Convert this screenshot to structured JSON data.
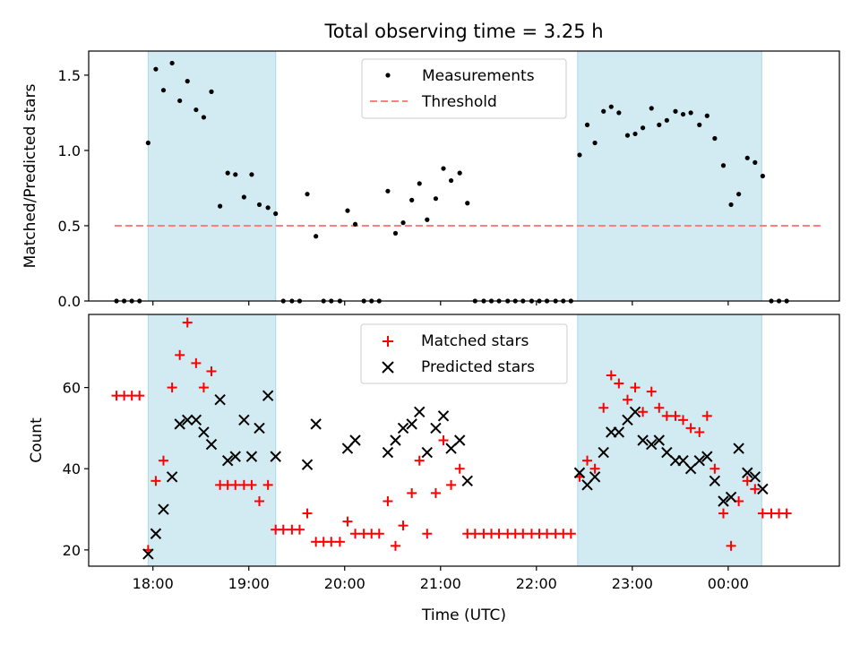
{
  "chart_data": {
    "title": "Total observing time = 3.25 h",
    "xlabel": "Time (UTC)",
    "x_ticks": [
      "18:00",
      "19:00",
      "20:00",
      "21:00",
      "22:00",
      "23:00",
      "00:00"
    ],
    "x_tick_hours": [
      18,
      19,
      20,
      21,
      22,
      23,
      24
    ],
    "xlim": [
      17.33,
      25.16
    ],
    "shaded_intervals": [
      [
        17.95,
        19.28
      ],
      [
        22.43,
        24.35
      ]
    ],
    "shade_color": "#add8e6",
    "top": {
      "type": "scatter",
      "ylabel": "Matched/Predicted stars",
      "ylim": [
        0,
        1.66
      ],
      "y_ticks": [
        0.0,
        0.5,
        1.0,
        1.5
      ],
      "y_tick_labels": [
        "0.0",
        "0.5",
        "1.0",
        "1.5"
      ],
      "legend": {
        "measurements": "Measurements",
        "threshold": "Threshold",
        "placement": "upper center"
      },
      "threshold": {
        "value": 0.5,
        "x_range": [
          17.6,
          24.98
        ],
        "color": "#ff7f7f"
      },
      "series": {
        "name": "Measurements",
        "color": "#000000",
        "points": [
          [
            17.62,
            0
          ],
          [
            17.7,
            0
          ],
          [
            17.78,
            0
          ],
          [
            17.86,
            0
          ],
          [
            17.95,
            1.05
          ],
          [
            18.03,
            1.54
          ],
          [
            18.11,
            1.4
          ],
          [
            18.2,
            1.58
          ],
          [
            18.28,
            1.33
          ],
          [
            18.36,
            1.46
          ],
          [
            18.45,
            1.27
          ],
          [
            18.53,
            1.22
          ],
          [
            18.61,
            1.39
          ],
          [
            18.7,
            0.63
          ],
          [
            18.78,
            0.85
          ],
          [
            18.86,
            0.84
          ],
          [
            18.95,
            0.69
          ],
          [
            19.03,
            0.84
          ],
          [
            19.11,
            0.64
          ],
          [
            19.2,
            0.62
          ],
          [
            19.28,
            0.58
          ],
          [
            19.36,
            0
          ],
          [
            19.45,
            0
          ],
          [
            19.53,
            0
          ],
          [
            19.61,
            0.71
          ],
          [
            19.7,
            0.43
          ],
          [
            19.78,
            0
          ],
          [
            19.86,
            0
          ],
          [
            19.95,
            0
          ],
          [
            20.03,
            0.6
          ],
          [
            20.11,
            0.51
          ],
          [
            20.2,
            0
          ],
          [
            20.28,
            0
          ],
          [
            20.36,
            0
          ],
          [
            20.45,
            0.73
          ],
          [
            20.53,
            0.45
          ],
          [
            20.61,
            0.52
          ],
          [
            20.7,
            0.67
          ],
          [
            20.78,
            0.78
          ],
          [
            20.86,
            0.54
          ],
          [
            20.95,
            0.68
          ],
          [
            21.03,
            0.88
          ],
          [
            21.11,
            0.8
          ],
          [
            21.2,
            0.85
          ],
          [
            21.28,
            0.65
          ],
          [
            21.36,
            0
          ],
          [
            21.45,
            0
          ],
          [
            21.53,
            0
          ],
          [
            21.61,
            0
          ],
          [
            21.7,
            0
          ],
          [
            21.78,
            0
          ],
          [
            21.86,
            0
          ],
          [
            21.95,
            0
          ],
          [
            22.03,
            0
          ],
          [
            22.11,
            0
          ],
          [
            22.2,
            0
          ],
          [
            22.28,
            0
          ],
          [
            22.36,
            0
          ],
          [
            22.45,
            0.97
          ],
          [
            22.53,
            1.17
          ],
          [
            22.61,
            1.05
          ],
          [
            22.7,
            1.26
          ],
          [
            22.78,
            1.29
          ],
          [
            22.86,
            1.25
          ],
          [
            22.95,
            1.1
          ],
          [
            23.03,
            1.11
          ],
          [
            23.11,
            1.15
          ],
          [
            23.2,
            1.28
          ],
          [
            23.28,
            1.17
          ],
          [
            23.36,
            1.2
          ],
          [
            23.45,
            1.26
          ],
          [
            23.53,
            1.24
          ],
          [
            23.61,
            1.25
          ],
          [
            23.7,
            1.17
          ],
          [
            23.78,
            1.23
          ],
          [
            23.86,
            1.08
          ],
          [
            23.95,
            0.9
          ],
          [
            24.03,
            0.64
          ],
          [
            24.11,
            0.71
          ],
          [
            24.2,
            0.95
          ],
          [
            24.28,
            0.92
          ],
          [
            24.36,
            0.83
          ],
          [
            24.45,
            0
          ],
          [
            24.53,
            0
          ],
          [
            24.61,
            0
          ]
        ]
      }
    },
    "bottom": {
      "type": "scatter",
      "ylabel": "Count",
      "ylim": [
        16,
        78
      ],
      "y_ticks": [
        20,
        40,
        60
      ],
      "y_tick_labels": [
        "20",
        "40",
        "60"
      ],
      "legend": {
        "placement": "upper center"
      },
      "series": [
        {
          "name": "Matched stars",
          "marker": "plus",
          "color": "#ff0000",
          "points": [
            [
              17.62,
              58
            ],
            [
              17.7,
              58
            ],
            [
              17.78,
              58
            ],
            [
              17.86,
              58
            ],
            [
              17.95,
              20
            ],
            [
              18.03,
              37
            ],
            [
              18.11,
              42
            ],
            [
              18.2,
              60
            ],
            [
              18.28,
              68
            ],
            [
              18.36,
              76
            ],
            [
              18.45,
              66
            ],
            [
              18.53,
              60
            ],
            [
              18.61,
              64
            ],
            [
              18.7,
              36
            ],
            [
              18.78,
              36
            ],
            [
              18.86,
              36
            ],
            [
              18.95,
              36
            ],
            [
              19.03,
              36
            ],
            [
              19.11,
              32
            ],
            [
              19.2,
              36
            ],
            [
              19.28,
              25
            ],
            [
              19.36,
              25
            ],
            [
              19.45,
              25
            ],
            [
              19.53,
              25
            ],
            [
              19.61,
              29
            ],
            [
              19.7,
              22
            ],
            [
              19.78,
              22
            ],
            [
              19.86,
              22
            ],
            [
              19.95,
              22
            ],
            [
              20.03,
              27
            ],
            [
              20.11,
              24
            ],
            [
              20.2,
              24
            ],
            [
              20.28,
              24
            ],
            [
              20.36,
              24
            ],
            [
              20.45,
              32
            ],
            [
              20.53,
              21
            ],
            [
              20.61,
              26
            ],
            [
              20.7,
              34
            ],
            [
              20.78,
              42
            ],
            [
              20.86,
              24
            ],
            [
              20.95,
              34
            ],
            [
              21.03,
              47
            ],
            [
              21.11,
              36
            ],
            [
              21.2,
              40
            ],
            [
              21.28,
              24
            ],
            [
              21.36,
              24
            ],
            [
              21.45,
              24
            ],
            [
              21.53,
              24
            ],
            [
              21.61,
              24
            ],
            [
              21.7,
              24
            ],
            [
              21.78,
              24
            ],
            [
              21.86,
              24
            ],
            [
              21.95,
              24
            ],
            [
              22.03,
              24
            ],
            [
              22.11,
              24
            ],
            [
              22.2,
              24
            ],
            [
              22.28,
              24
            ],
            [
              22.36,
              24
            ],
            [
              22.45,
              38
            ],
            [
              22.53,
              42
            ],
            [
              22.61,
              40
            ],
            [
              22.7,
              55
            ],
            [
              22.78,
              63
            ],
            [
              22.86,
              61
            ],
            [
              22.95,
              57
            ],
            [
              23.03,
              60
            ],
            [
              23.11,
              54
            ],
            [
              23.2,
              59
            ],
            [
              23.28,
              55
            ],
            [
              23.36,
              53
            ],
            [
              23.45,
              53
            ],
            [
              23.53,
              52
            ],
            [
              23.61,
              50
            ],
            [
              23.7,
              49
            ],
            [
              23.78,
              53
            ],
            [
              23.86,
              40
            ],
            [
              23.95,
              29
            ],
            [
              24.03,
              21
            ],
            [
              24.11,
              32
            ],
            [
              24.2,
              37
            ],
            [
              24.28,
              35
            ],
            [
              24.36,
              29
            ],
            [
              24.45,
              29
            ],
            [
              24.53,
              29
            ],
            [
              24.61,
              29
            ]
          ]
        },
        {
          "name": "Predicted stars",
          "marker": "x",
          "color": "#000000",
          "points": [
            [
              17.95,
              19
            ],
            [
              18.03,
              24
            ],
            [
              18.11,
              30
            ],
            [
              18.2,
              38
            ],
            [
              18.28,
              51
            ],
            [
              18.36,
              52
            ],
            [
              18.45,
              52
            ],
            [
              18.53,
              49
            ],
            [
              18.61,
              46
            ],
            [
              18.7,
              57
            ],
            [
              18.78,
              42
            ],
            [
              18.86,
              43
            ],
            [
              18.95,
              52
            ],
            [
              19.03,
              43
            ],
            [
              19.11,
              50
            ],
            [
              19.2,
              58
            ],
            [
              19.28,
              43
            ],
            [
              19.61,
              41
            ],
            [
              19.7,
              51
            ],
            [
              20.03,
              45
            ],
            [
              20.11,
              47
            ],
            [
              20.45,
              44
            ],
            [
              20.53,
              47
            ],
            [
              20.61,
              50
            ],
            [
              20.7,
              51
            ],
            [
              20.78,
              54
            ],
            [
              20.86,
              44
            ],
            [
              20.95,
              50
            ],
            [
              21.03,
              53
            ],
            [
              21.11,
              45
            ],
            [
              21.2,
              47
            ],
            [
              21.28,
              37
            ],
            [
              22.45,
              39
            ],
            [
              22.53,
              36
            ],
            [
              22.61,
              38
            ],
            [
              22.7,
              44
            ],
            [
              22.78,
              49
            ],
            [
              22.86,
              49
            ],
            [
              22.95,
              52
            ],
            [
              23.03,
              54
            ],
            [
              23.11,
              47
            ],
            [
              23.2,
              46
            ],
            [
              23.28,
              47
            ],
            [
              23.36,
              44
            ],
            [
              23.45,
              42
            ],
            [
              23.53,
              42
            ],
            [
              23.61,
              40
            ],
            [
              23.7,
              42
            ],
            [
              23.78,
              43
            ],
            [
              23.86,
              37
            ],
            [
              23.95,
              32
            ],
            [
              24.03,
              33
            ],
            [
              24.11,
              45
            ],
            [
              24.2,
              39
            ],
            [
              24.28,
              38
            ],
            [
              24.36,
              35
            ]
          ]
        }
      ]
    }
  }
}
